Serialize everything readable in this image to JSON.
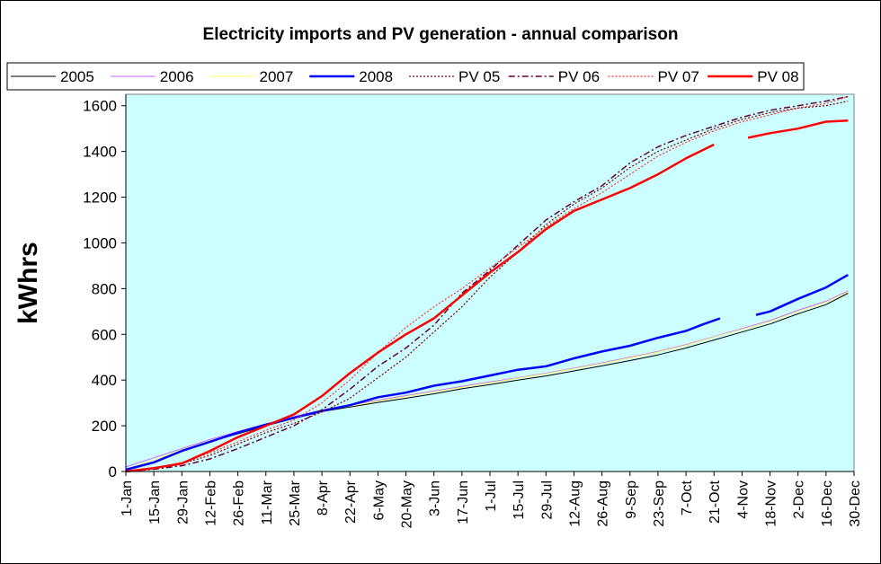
{
  "chart_data": {
    "type": "line",
    "title": "Electricity imports and PV generation - annual comparison",
    "xlabel": "",
    "ylabel": "kWhrs",
    "ylim": [
      0,
      1650
    ],
    "yticks": [
      0,
      200,
      400,
      600,
      800,
      1000,
      1200,
      1400,
      1600
    ],
    "xlim": [
      1,
      365
    ],
    "xticks": [
      {
        "day": 1,
        "label": "1-Jan"
      },
      {
        "day": 15,
        "label": "15-Jan"
      },
      {
        "day": 29,
        "label": "29-Jan"
      },
      {
        "day": 43,
        "label": "12-Feb"
      },
      {
        "day": 57,
        "label": "26-Feb"
      },
      {
        "day": 71,
        "label": "11-Mar"
      },
      {
        "day": 85,
        "label": "25-Mar"
      },
      {
        "day": 99,
        "label": "8-Apr"
      },
      {
        "day": 113,
        "label": "22-Apr"
      },
      {
        "day": 127,
        "label": "6-May"
      },
      {
        "day": 141,
        "label": "20-May"
      },
      {
        "day": 155,
        "label": "3-Jun"
      },
      {
        "day": 169,
        "label": "17-Jun"
      },
      {
        "day": 183,
        "label": "1-Jul"
      },
      {
        "day": 197,
        "label": "15-Jul"
      },
      {
        "day": 211,
        "label": "29-Jul"
      },
      {
        "day": 225,
        "label": "12-Aug"
      },
      {
        "day": 239,
        "label": "26-Aug"
      },
      {
        "day": 253,
        "label": "9-Sep"
      },
      {
        "day": 267,
        "label": "23-Sep"
      },
      {
        "day": 281,
        "label": "7-Oct"
      },
      {
        "day": 295,
        "label": "21-Oct"
      },
      {
        "day": 309,
        "label": "4-Nov"
      },
      {
        "day": 323,
        "label": "18-Nov"
      },
      {
        "day": 337,
        "label": "2-Dec"
      },
      {
        "day": 351,
        "label": "16-Dec"
      },
      {
        "day": 365,
        "label": "30-Dec"
      }
    ],
    "grid": false,
    "legend_position": "top",
    "plot_background": "#ccffff",
    "series": [
      {
        "name": "2005",
        "color": "#000000",
        "width": 1,
        "dash": "",
        "points": [
          [
            1,
            5
          ],
          [
            15,
            40
          ],
          [
            29,
            90
          ],
          [
            43,
            130
          ],
          [
            57,
            165
          ],
          [
            71,
            200
          ],
          [
            85,
            232
          ],
          [
            99,
            262
          ],
          [
            113,
            282
          ],
          [
            127,
            302
          ],
          [
            141,
            320
          ],
          [
            155,
            340
          ],
          [
            169,
            362
          ],
          [
            183,
            380
          ],
          [
            197,
            400
          ],
          [
            211,
            418
          ],
          [
            225,
            440
          ],
          [
            239,
            462
          ],
          [
            253,
            485
          ],
          [
            267,
            510
          ],
          [
            281,
            540
          ],
          [
            295,
            575
          ],
          [
            309,
            610
          ],
          [
            323,
            645
          ],
          [
            337,
            690
          ],
          [
            351,
            730
          ],
          [
            362,
            780
          ]
        ]
      },
      {
        "name": "2006",
        "color": "#cc66ff",
        "width": 1,
        "dash": "",
        "points": [
          [
            1,
            20
          ],
          [
            15,
            60
          ],
          [
            29,
            100
          ],
          [
            43,
            140
          ],
          [
            57,
            175
          ],
          [
            71,
            208
          ],
          [
            85,
            240
          ],
          [
            99,
            268
          ],
          [
            113,
            290
          ],
          [
            127,
            312
          ],
          [
            141,
            332
          ],
          [
            155,
            352
          ],
          [
            169,
            372
          ],
          [
            183,
            392
          ],
          [
            197,
            410
          ],
          [
            211,
            430
          ],
          [
            225,
            452
          ],
          [
            239,
            475
          ],
          [
            253,
            500
          ],
          [
            267,
            525
          ],
          [
            281,
            555
          ],
          [
            295,
            590
          ],
          [
            309,
            625
          ],
          [
            323,
            660
          ],
          [
            337,
            705
          ],
          [
            351,
            745
          ],
          [
            362,
            790
          ]
        ]
      },
      {
        "name": "2007",
        "color": "#ffff66",
        "width": 1,
        "dash": "",
        "points": [
          [
            1,
            10
          ],
          [
            15,
            50
          ],
          [
            29,
            95
          ],
          [
            43,
            135
          ],
          [
            57,
            170
          ],
          [
            71,
            205
          ],
          [
            85,
            236
          ],
          [
            99,
            265
          ],
          [
            113,
            286
          ],
          [
            127,
            308
          ],
          [
            141,
            328
          ],
          [
            155,
            348
          ],
          [
            169,
            368
          ],
          [
            183,
            388
          ],
          [
            197,
            408
          ],
          [
            211,
            428
          ],
          [
            225,
            450
          ],
          [
            239,
            472
          ],
          [
            253,
            497
          ],
          [
            267,
            522
          ],
          [
            281,
            552
          ],
          [
            295,
            588
          ],
          [
            309,
            622
          ],
          [
            323,
            656
          ],
          [
            337,
            700
          ],
          [
            351,
            740
          ],
          [
            362,
            785
          ]
        ]
      },
      {
        "name": "2008",
        "color": "#0000ff",
        "width": 2.5,
        "dash": "",
        "points": [
          [
            1,
            8
          ],
          [
            15,
            40
          ],
          [
            29,
            90
          ],
          [
            43,
            130
          ],
          [
            57,
            170
          ],
          [
            71,
            205
          ],
          [
            85,
            235
          ],
          [
            99,
            265
          ],
          [
            113,
            290
          ],
          [
            127,
            325
          ],
          [
            141,
            345
          ],
          [
            155,
            375
          ],
          [
            169,
            395
          ],
          [
            183,
            420
          ],
          [
            197,
            445
          ],
          [
            211,
            460
          ],
          [
            225,
            495
          ],
          [
            239,
            525
          ],
          [
            253,
            550
          ],
          [
            267,
            585
          ],
          [
            281,
            615
          ],
          [
            289,
            642
          ],
          [
            298,
            670
          ],
          null,
          [
            316,
            685
          ],
          [
            323,
            700
          ],
          [
            337,
            755
          ],
          [
            351,
            805
          ],
          [
            362,
            860
          ]
        ]
      },
      {
        "name": "PV 05",
        "color": "#800000",
        "width": 1.2,
        "dash": "2,2",
        "points": [
          [
            1,
            0
          ],
          [
            15,
            15
          ],
          [
            29,
            35
          ],
          [
            43,
            70
          ],
          [
            57,
            120
          ],
          [
            71,
            170
          ],
          [
            85,
            210
          ],
          [
            99,
            260
          ],
          [
            113,
            320
          ],
          [
            127,
            410
          ],
          [
            141,
            500
          ],
          [
            155,
            610
          ],
          [
            169,
            720
          ],
          [
            183,
            850
          ],
          [
            197,
            960
          ],
          [
            211,
            1080
          ],
          [
            225,
            1170
          ],
          [
            239,
            1240
          ],
          [
            253,
            1330
          ],
          [
            267,
            1400
          ],
          [
            281,
            1450
          ],
          [
            295,
            1500
          ],
          [
            309,
            1540
          ],
          [
            323,
            1570
          ],
          [
            337,
            1590
          ],
          [
            351,
            1600
          ],
          [
            362,
            1620
          ]
        ]
      },
      {
        "name": "PV 06",
        "color": "#660033",
        "width": 1.5,
        "dash": "7,3,2,3",
        "points": [
          [
            1,
            0
          ],
          [
            15,
            10
          ],
          [
            29,
            25
          ],
          [
            43,
            55
          ],
          [
            57,
            100
          ],
          [
            71,
            150
          ],
          [
            85,
            200
          ],
          [
            99,
            270
          ],
          [
            113,
            360
          ],
          [
            127,
            460
          ],
          [
            141,
            540
          ],
          [
            155,
            640
          ],
          [
            169,
            780
          ],
          [
            183,
            880
          ],
          [
            197,
            990
          ],
          [
            211,
            1100
          ],
          [
            225,
            1180
          ],
          [
            239,
            1250
          ],
          [
            253,
            1350
          ],
          [
            267,
            1420
          ],
          [
            281,
            1470
          ],
          [
            295,
            1510
          ],
          [
            309,
            1550
          ],
          [
            323,
            1580
          ],
          [
            337,
            1600
          ],
          [
            351,
            1620
          ],
          [
            362,
            1640
          ]
        ]
      },
      {
        "name": "PV 07",
        "color": "#ff3333",
        "width": 1.2,
        "dash": "2,2",
        "points": [
          [
            1,
            0
          ],
          [
            15,
            15
          ],
          [
            29,
            40
          ],
          [
            43,
            80
          ],
          [
            57,
            130
          ],
          [
            71,
            180
          ],
          [
            85,
            225
          ],
          [
            99,
            300
          ],
          [
            113,
            400
          ],
          [
            127,
            520
          ],
          [
            141,
            630
          ],
          [
            155,
            720
          ],
          [
            169,
            800
          ],
          [
            183,
            890
          ],
          [
            197,
            980
          ],
          [
            211,
            1070
          ],
          [
            225,
            1150
          ],
          [
            239,
            1220
          ],
          [
            253,
            1300
          ],
          [
            267,
            1380
          ],
          [
            281,
            1440
          ],
          [
            295,
            1490
          ],
          [
            309,
            1530
          ],
          [
            323,
            1560
          ],
          [
            337,
            1590
          ],
          [
            351,
            1610
          ],
          [
            362,
            1640
          ]
        ]
      },
      {
        "name": "PV 08",
        "color": "#ff0000",
        "width": 2.5,
        "dash": "",
        "points": [
          [
            1,
            0
          ],
          [
            15,
            15
          ],
          [
            29,
            35
          ],
          [
            43,
            90
          ],
          [
            57,
            150
          ],
          [
            71,
            200
          ],
          [
            85,
            250
          ],
          [
            99,
            330
          ],
          [
            113,
            430
          ],
          [
            127,
            520
          ],
          [
            141,
            600
          ],
          [
            155,
            670
          ],
          [
            169,
            770
          ],
          [
            183,
            870
          ],
          [
            197,
            960
          ],
          [
            211,
            1060
          ],
          [
            225,
            1140
          ],
          [
            239,
            1190
          ],
          [
            253,
            1240
          ],
          [
            267,
            1300
          ],
          [
            281,
            1370
          ],
          [
            295,
            1430
          ],
          null,
          [
            312,
            1460
          ],
          [
            323,
            1480
          ],
          [
            337,
            1500
          ],
          [
            351,
            1530
          ],
          [
            362,
            1535
          ]
        ]
      }
    ]
  }
}
